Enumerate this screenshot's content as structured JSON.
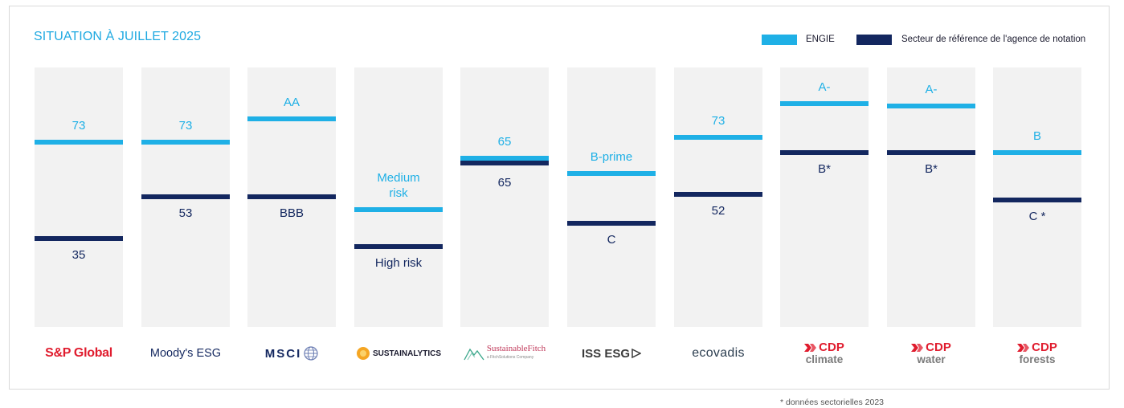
{
  "title": "SITUATION À JUILLET 2025",
  "legend": {
    "engie": {
      "label": "ENGIE",
      "color": "#1fb0e6"
    },
    "sector": {
      "label": "Secteur de référence de l'agence de notation",
      "color": "#13275f"
    }
  },
  "footnote": "* données sectorielles 2023",
  "chart_data": {
    "type": "bar",
    "series": [
      {
        "name": "ENGIE"
      },
      {
        "name": "Secteur de référence de l'agence de notation"
      }
    ],
    "columns": [
      {
        "logo": "S&P Global",
        "logo_icon": "sp-global-logo",
        "engie_label": "73",
        "engie_level": 0.28,
        "sector_label": "35",
        "sector_level": 0.65
      },
      {
        "logo": "Moody's ESG",
        "logo_icon": "moodys-esg-logo",
        "engie_label": "73",
        "engie_level": 0.28,
        "sector_label": "53",
        "sector_level": 0.49
      },
      {
        "logo": "MSCI",
        "logo_icon": "msci-logo",
        "engie_label": "AA",
        "engie_level": 0.19,
        "sector_label": "BBB",
        "sector_level": 0.49
      },
      {
        "logo": "SUSTAINALYTICS",
        "logo_icon": "sustainalytics-logo",
        "engie_label": "Medium risk",
        "engie_level": 0.54,
        "sector_label": "High risk",
        "sector_level": 0.68
      },
      {
        "logo": "SustainableFitch",
        "logo_sub": "a FitchSolutions Company",
        "logo_icon": "sustainable-fitch-logo",
        "engie_label": "65",
        "engie_level": 0.34,
        "sector_label": "65",
        "sector_level": 0.36
      },
      {
        "logo": "ISS ESG",
        "logo_icon": "iss-esg-logo",
        "engie_label": "B-prime",
        "engie_level": 0.4,
        "sector_label": "C",
        "sector_level": 0.59
      },
      {
        "logo": "ecovadis",
        "logo_icon": "ecovadis-logo",
        "engie_label": "73",
        "engie_level": 0.26,
        "sector_label": "52",
        "sector_level": 0.48
      },
      {
        "logo": "CDP",
        "logo_sub": "climate",
        "logo_icon": "cdp-logo",
        "engie_label": "A-",
        "engie_level": 0.13,
        "sector_label": "B*",
        "sector_level": 0.32
      },
      {
        "logo": "CDP",
        "logo_sub": "water",
        "logo_icon": "cdp-logo",
        "engie_label": "A-",
        "engie_level": 0.14,
        "sector_label": "B*",
        "sector_level": 0.32
      },
      {
        "logo": "CDP",
        "logo_sub": "forests",
        "logo_icon": "cdp-logo",
        "engie_label": "B",
        "engie_level": 0.32,
        "sector_label": "C *",
        "sector_level": 0.5
      }
    ]
  }
}
